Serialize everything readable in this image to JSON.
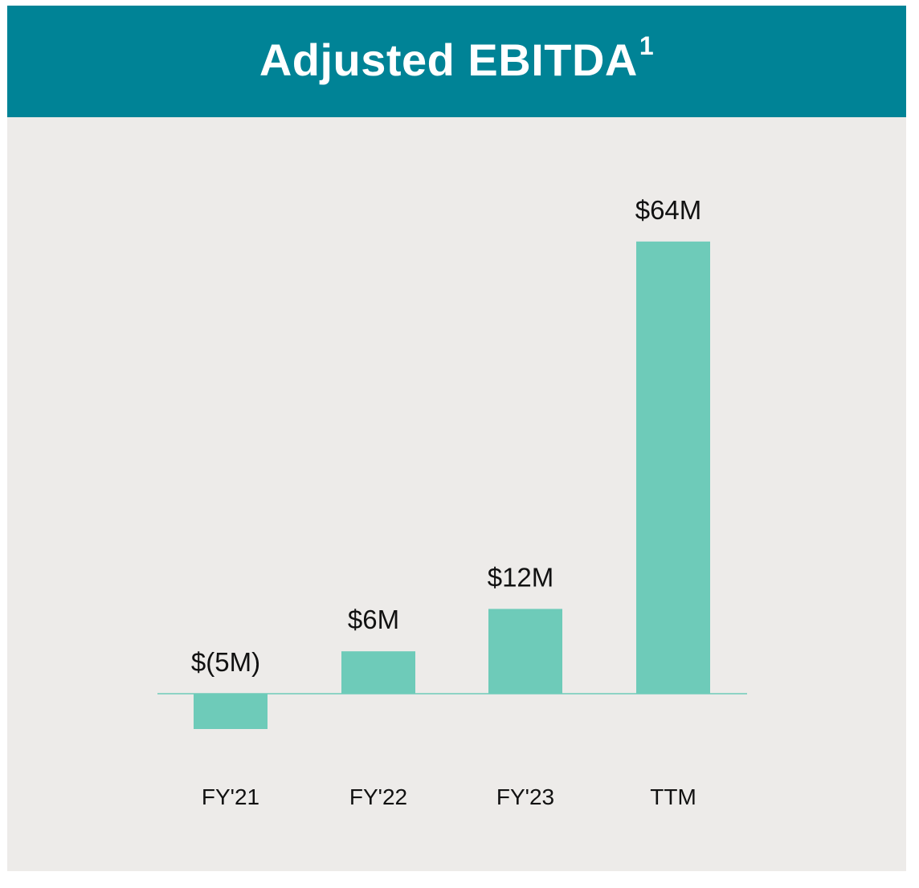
{
  "header": {
    "title": "Adjusted EBITDA",
    "superscript": "1"
  },
  "colors": {
    "header_bg": "#008396",
    "panel_bg": "#edebe9",
    "bar": "#6ecbb9",
    "baseline": "#6ecbb9"
  },
  "chart_data": {
    "type": "bar",
    "title": "Adjusted EBITDA",
    "xlabel": "",
    "ylabel": "",
    "categories": [
      "FY'21",
      "FY'22",
      "FY'23",
      "TTM"
    ],
    "values": [
      -5,
      6,
      12,
      64
    ],
    "data_labels": [
      "$(5M)",
      "$6M",
      "$12M",
      "$64M"
    ],
    "unit": "$M",
    "ylim": [
      -5,
      64
    ],
    "grid": false,
    "legend": "none"
  }
}
